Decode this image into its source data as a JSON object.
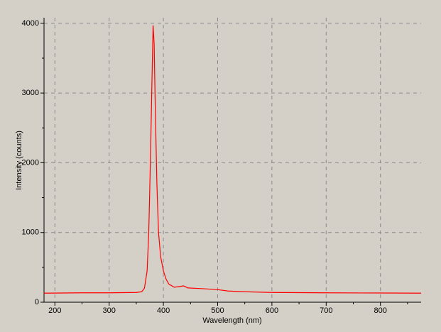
{
  "chart_data": {
    "type": "line",
    "xlabel": "Wavelength (nm)",
    "ylabel": "Intensity (counts)",
    "x": [
      180,
      250,
      300,
      350,
      360,
      365,
      370,
      373,
      376,
      379,
      381,
      383,
      385,
      388,
      391,
      395,
      400,
      405,
      410,
      420,
      430,
      437,
      445,
      470,
      500,
      520,
      550,
      600,
      700,
      800,
      875
    ],
    "series": [
      {
        "color": "#ff0000",
        "values": [
          130,
          135,
          135,
          140,
          150,
          200,
          450,
          1000,
          2000,
          3200,
          3970,
          3700,
          2800,
          1700,
          1000,
          650,
          450,
          330,
          260,
          215,
          225,
          235,
          205,
          195,
          180,
          160,
          150,
          140,
          135,
          132,
          130
        ]
      }
    ],
    "xlim": [
      180,
      875
    ],
    "ylim": [
      0,
      4080
    ],
    "xticks": [
      200,
      300,
      400,
      500,
      600,
      700,
      800
    ],
    "yticks": [
      0,
      1000,
      2000,
      3000,
      4000
    ],
    "xminorticks": [
      250,
      350,
      450,
      550,
      650,
      750,
      850
    ],
    "yminorticks": [
      500,
      1500,
      2500,
      3500
    ],
    "grid": true
  }
}
